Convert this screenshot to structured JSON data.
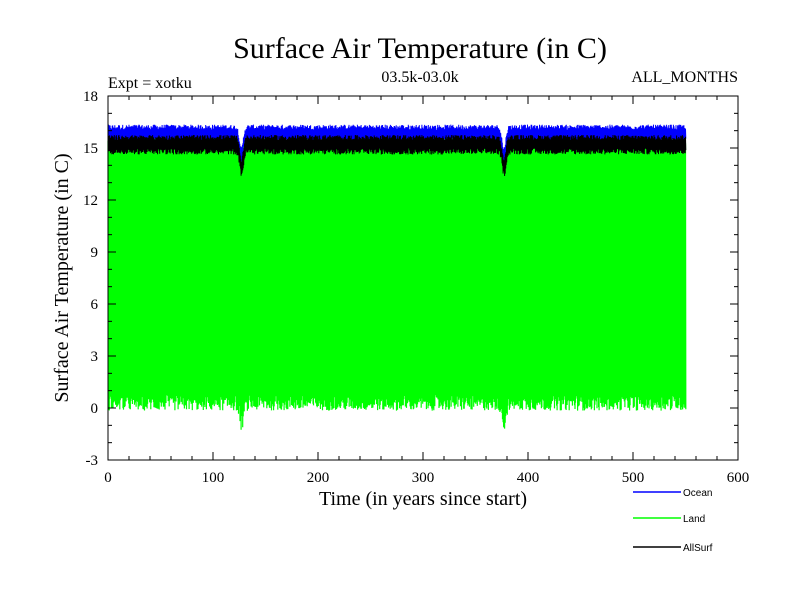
{
  "chart_data": {
    "type": "line",
    "title": "Surface Air Temperature (in C)",
    "subtitle_left": "Expt = xotku",
    "subtitle_center": "03.5k-03.0k",
    "subtitle_right": "ALL_MONTHS",
    "xlabel": "Time (in years since start)",
    "ylabel": "Surface Air Temperature (in C)",
    "xlim": [
      0,
      600
    ],
    "ylim": [
      -3,
      18
    ],
    "xticks": [
      0,
      100,
      200,
      300,
      400,
      500,
      600
    ],
    "yticks": [
      -3,
      0,
      3,
      6,
      9,
      12,
      15,
      18
    ],
    "x_range_data": [
      0,
      550
    ],
    "series": [
      {
        "name": "Ocean",
        "color": "#0000ff",
        "seasonal_min": 15.4,
        "seasonal_max": 16.2
      },
      {
        "name": "Land",
        "color": "#00ff00",
        "seasonal_min": 0.3,
        "seasonal_max": 15.3
      },
      {
        "name": "AllSurf",
        "color": "#000000",
        "seasonal_min": 14.8,
        "seasonal_max": 15.6
      }
    ],
    "dips": [
      {
        "year": 127,
        "depth": 1.3
      },
      {
        "year": 377,
        "depth": 1.3
      }
    ],
    "legend_position": "bottom-right"
  }
}
